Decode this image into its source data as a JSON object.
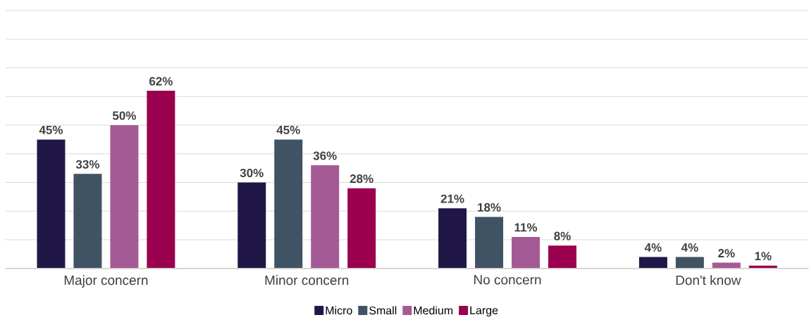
{
  "chart_data": {
    "type": "bar",
    "categories": [
      "Major concern",
      "Minor concern",
      "No concern",
      "Don't know"
    ],
    "series": [
      {
        "name": "Micro",
        "color": "#201747",
        "values": [
          45,
          30,
          21,
          4
        ],
        "value_labels": [
          "45%",
          "30%",
          "21%",
          "4%"
        ]
      },
      {
        "name": "Small",
        "color": "#3f5364",
        "values": [
          33,
          45,
          18,
          4
        ],
        "value_labels": [
          "33%",
          "45%",
          "18%",
          "4%"
        ]
      },
      {
        "name": "Medium",
        "color": "#a45a95",
        "values": [
          50,
          36,
          11,
          2
        ],
        "value_labels": [
          "50%",
          "36%",
          "11%",
          "2%"
        ]
      },
      {
        "name": "Large",
        "color": "#9b004f",
        "values": [
          62,
          28,
          8,
          1
        ],
        "value_labels": [
          "62%",
          "28%",
          "8%",
          "1%"
        ]
      }
    ],
    "ylim": [
      0,
      90
    ],
    "yticks": [
      {
        "value": 0,
        "label": null
      },
      {
        "value": 10,
        "label": null
      },
      {
        "value": 20,
        "label": null
      },
      {
        "value": 30,
        "label": null
      },
      {
        "value": 40,
        "label": null
      },
      {
        "value": 50,
        "label": null
      },
      {
        "value": 60,
        "label": null
      },
      {
        "value": 70,
        "label": null
      },
      {
        "value": 80,
        "label": null
      },
      {
        "value": 90,
        "label": null
      }
    ],
    "tick_labels": "x",
    "grid": "y",
    "legend": "bottom"
  }
}
